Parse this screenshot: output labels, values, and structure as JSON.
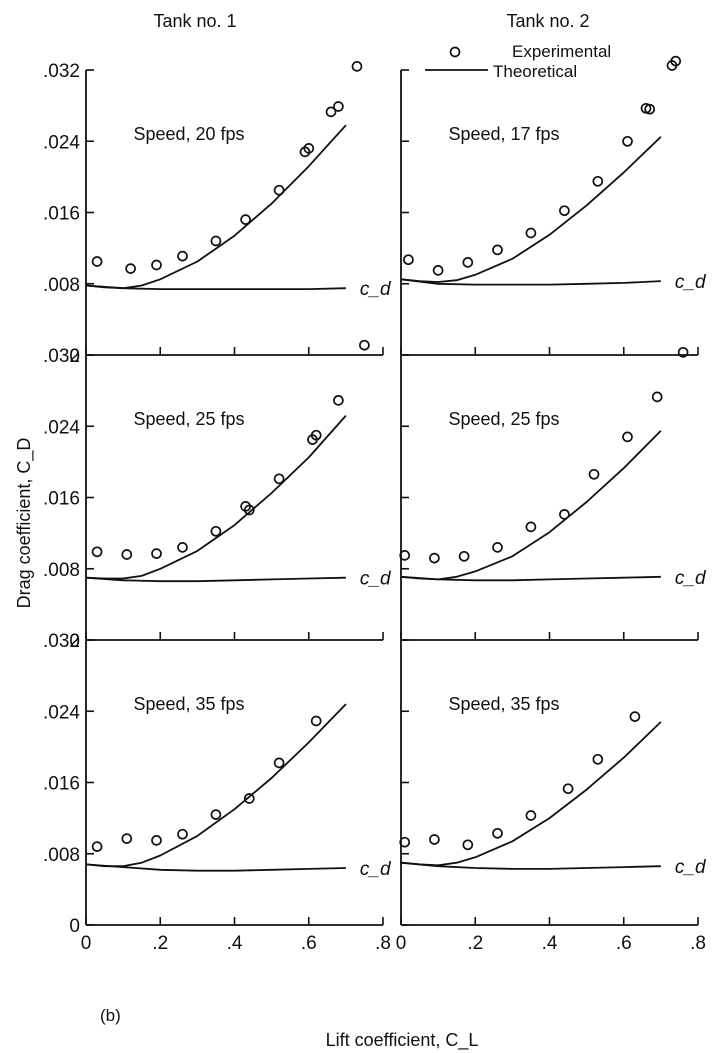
{
  "columns": [
    "Tank no. 1",
    "Tank no. 2"
  ],
  "xlabel": "Lift coefficient, C_L",
  "ylabel": "Drag coefficient, C_D",
  "legend": {
    "experimental": "Experimental",
    "theoretical": "Theoretical"
  },
  "panel_tag": "(b)",
  "curve_label": "c_d",
  "chart_data": [
    {
      "type": "scatter",
      "panel": "tank1-20fps",
      "title": "Speed, 20 fps",
      "column": "Tank no. 1",
      "xlim": [
        0,
        0.8
      ],
      "ylim": [
        0,
        0.032
      ],
      "xticks": [
        {
          "v": 0,
          "label": "0"
        },
        {
          "v": 0.2,
          "label": ".2"
        },
        {
          "v": 0.4,
          "label": ".4"
        },
        {
          "v": 0.6,
          "label": ".6"
        },
        {
          "v": 0.8,
          "label": ".8"
        }
      ],
      "yticks": [
        {
          "v": 0,
          "label": "0"
        },
        {
          "v": 0.008,
          "label": ".008"
        },
        {
          "v": 0.016,
          "label": ".016"
        },
        {
          "v": 0.024,
          "label": ".024"
        },
        {
          "v": 0.032,
          "label": ".032"
        }
      ],
      "series": [
        {
          "name": "Experimental",
          "kind": "points",
          "x": [
            0.03,
            0.12,
            0.19,
            0.26,
            0.35,
            0.43,
            0.52,
            0.59,
            0.6,
            0.66,
            0.68,
            0.73
          ],
          "y": [
            0.0105,
            0.0097,
            0.0101,
            0.0111,
            0.0128,
            0.0152,
            0.0185,
            0.0228,
            0.0232,
            0.0273,
            0.0279,
            0.0324
          ]
        },
        {
          "name": "Theoretical",
          "kind": "line",
          "x": [
            0,
            0.05,
            0.1,
            0.15,
            0.2,
            0.3,
            0.4,
            0.5,
            0.6,
            0.7
          ],
          "y": [
            0.0078,
            0.0076,
            0.0075,
            0.0078,
            0.0085,
            0.0105,
            0.0134,
            0.017,
            0.0212,
            0.0258
          ]
        },
        {
          "name": "c_d",
          "kind": "line",
          "x": [
            0,
            0.1,
            0.2,
            0.3,
            0.4,
            0.5,
            0.6,
            0.7
          ],
          "y": [
            0.0078,
            0.0075,
            0.0074,
            0.0074,
            0.0074,
            0.0074,
            0.0074,
            0.0075
          ]
        }
      ]
    },
    {
      "type": "scatter",
      "panel": "tank2-17fps",
      "title": "Speed, 17 fps",
      "column": "Tank no. 2",
      "xlim": [
        0,
        0.8
      ],
      "ylim": [
        0,
        0.032
      ],
      "xticks": [
        {
          "v": 0,
          "label": "0"
        },
        {
          "v": 0.2,
          "label": ".2"
        },
        {
          "v": 0.4,
          "label": ".4"
        },
        {
          "v": 0.6,
          "label": ".6"
        },
        {
          "v": 0.8,
          "label": ".8"
        }
      ],
      "yticks": [
        {
          "v": 0,
          "label": "0"
        },
        {
          "v": 0.008,
          "label": ".008"
        },
        {
          "v": 0.016,
          "label": ".016"
        },
        {
          "v": 0.024,
          "label": ".024"
        },
        {
          "v": 0.032,
          "label": ".032"
        }
      ],
      "series": [
        {
          "name": "Experimental",
          "kind": "points",
          "x": [
            0.02,
            0.1,
            0.18,
            0.26,
            0.35,
            0.44,
            0.53,
            0.61,
            0.66,
            0.67,
            0.73,
            0.74
          ],
          "y": [
            0.0107,
            0.0095,
            0.0104,
            0.0118,
            0.0137,
            0.0162,
            0.0195,
            0.024,
            0.0277,
            0.0276,
            0.0325,
            0.033
          ]
        },
        {
          "name": "Theoretical",
          "kind": "line",
          "x": [
            0,
            0.05,
            0.1,
            0.15,
            0.2,
            0.3,
            0.4,
            0.5,
            0.6,
            0.7
          ],
          "y": [
            0.0085,
            0.0083,
            0.0082,
            0.0084,
            0.009,
            0.0108,
            0.0135,
            0.0168,
            0.0205,
            0.0245
          ]
        },
        {
          "name": "c_d",
          "kind": "line",
          "x": [
            0,
            0.1,
            0.2,
            0.3,
            0.4,
            0.5,
            0.6,
            0.7
          ],
          "y": [
            0.0085,
            0.008,
            0.0079,
            0.0079,
            0.0079,
            0.008,
            0.0081,
            0.0083
          ]
        }
      ]
    },
    {
      "type": "scatter",
      "panel": "tank1-25fps",
      "title": "Speed, 25 fps",
      "column": "Tank no. 1",
      "xlim": [
        0,
        0.8
      ],
      "ylim": [
        0,
        0.032
      ],
      "xticks": [
        {
          "v": 0,
          "label": "0"
        },
        {
          "v": 0.2,
          "label": ".2"
        },
        {
          "v": 0.4,
          "label": ".4"
        },
        {
          "v": 0.6,
          "label": ".6"
        },
        {
          "v": 0.8,
          "label": ".8"
        }
      ],
      "yticks": [
        {
          "v": 0,
          "label": "0"
        },
        {
          "v": 0.008,
          "label": ".008"
        },
        {
          "v": 0.016,
          "label": ".016"
        },
        {
          "v": 0.024,
          "label": ".024"
        },
        {
          "v": 0.032,
          "label": ".032"
        }
      ],
      "series": [
        {
          "name": "Experimental",
          "kind": "points",
          "x": [
            0.03,
            0.11,
            0.19,
            0.26,
            0.35,
            0.43,
            0.44,
            0.52,
            0.61,
            0.62,
            0.68,
            0.75
          ],
          "y": [
            0.0099,
            0.0096,
            0.0097,
            0.0104,
            0.0122,
            0.015,
            0.0146,
            0.0181,
            0.0225,
            0.023,
            0.0269,
            0.0331
          ]
        },
        {
          "name": "Theoretical",
          "kind": "line",
          "x": [
            0,
            0.05,
            0.1,
            0.15,
            0.2,
            0.3,
            0.4,
            0.5,
            0.6,
            0.7
          ],
          "y": [
            0.007,
            0.0069,
            0.0069,
            0.0072,
            0.008,
            0.01,
            0.0129,
            0.0165,
            0.0205,
            0.0252
          ]
        },
        {
          "name": "c_d",
          "kind": "line",
          "x": [
            0,
            0.1,
            0.2,
            0.3,
            0.4,
            0.5,
            0.6,
            0.7
          ],
          "y": [
            0.007,
            0.0067,
            0.0066,
            0.0066,
            0.0067,
            0.0068,
            0.0069,
            0.007
          ]
        }
      ]
    },
    {
      "type": "scatter",
      "panel": "tank2-25fps",
      "title": "Speed, 25 fps",
      "column": "Tank no. 2",
      "xlim": [
        0,
        0.8
      ],
      "ylim": [
        0,
        0.032
      ],
      "xticks": [
        {
          "v": 0,
          "label": "0"
        },
        {
          "v": 0.2,
          "label": ".2"
        },
        {
          "v": 0.4,
          "label": ".4"
        },
        {
          "v": 0.6,
          "label": ".6"
        },
        {
          "v": 0.8,
          "label": ".8"
        }
      ],
      "yticks": [
        {
          "v": 0,
          "label": "0"
        },
        {
          "v": 0.008,
          "label": ".008"
        },
        {
          "v": 0.016,
          "label": ".016"
        },
        {
          "v": 0.024,
          "label": ".024"
        },
        {
          "v": 0.032,
          "label": ".032"
        }
      ],
      "series": [
        {
          "name": "Experimental",
          "kind": "points",
          "x": [
            0.01,
            0.09,
            0.17,
            0.26,
            0.35,
            0.44,
            0.52,
            0.61,
            0.69,
            0.76
          ],
          "y": [
            0.0095,
            0.0092,
            0.0094,
            0.0104,
            0.0127,
            0.0141,
            0.0186,
            0.0228,
            0.0273,
            0.0323
          ]
        },
        {
          "name": "Theoretical",
          "kind": "line",
          "x": [
            0,
            0.05,
            0.1,
            0.15,
            0.2,
            0.3,
            0.4,
            0.5,
            0.6,
            0.7
          ],
          "y": [
            0.0071,
            0.0069,
            0.0068,
            0.0071,
            0.0077,
            0.0094,
            0.0121,
            0.0155,
            0.0193,
            0.0235
          ]
        },
        {
          "name": "c_d",
          "kind": "line",
          "x": [
            0,
            0.1,
            0.2,
            0.3,
            0.4,
            0.5,
            0.6,
            0.7
          ],
          "y": [
            0.0071,
            0.0068,
            0.0067,
            0.0067,
            0.0068,
            0.0069,
            0.007,
            0.0071
          ]
        }
      ]
    },
    {
      "type": "scatter",
      "panel": "tank1-35fps",
      "title": "Speed, 35 fps",
      "column": "Tank no. 1",
      "xlim": [
        0,
        0.8
      ],
      "ylim": [
        0,
        0.032
      ],
      "xticks": [
        {
          "v": 0,
          "label": "0"
        },
        {
          "v": 0.2,
          "label": ".2"
        },
        {
          "v": 0.4,
          "label": ".4"
        },
        {
          "v": 0.6,
          "label": ".6"
        },
        {
          "v": 0.8,
          "label": ".8"
        }
      ],
      "yticks": [
        {
          "v": 0,
          "label": "0"
        },
        {
          "v": 0.008,
          "label": ".008"
        },
        {
          "v": 0.016,
          "label": ".016"
        },
        {
          "v": 0.024,
          "label": ".024"
        },
        {
          "v": 0.032,
          "label": ".032"
        }
      ],
      "series": [
        {
          "name": "Experimental",
          "kind": "points",
          "x": [
            0.03,
            0.11,
            0.19,
            0.26,
            0.35,
            0.44,
            0.52,
            0.62
          ],
          "y": [
            0.0088,
            0.0097,
            0.0095,
            0.0102,
            0.0124,
            0.0142,
            0.0182,
            0.0229
          ]
        },
        {
          "name": "Theoretical",
          "kind": "line",
          "x": [
            0,
            0.05,
            0.1,
            0.15,
            0.2,
            0.3,
            0.4,
            0.5,
            0.6,
            0.7
          ],
          "y": [
            0.0068,
            0.0066,
            0.0066,
            0.007,
            0.0078,
            0.01,
            0.013,
            0.0165,
            0.0205,
            0.0248
          ]
        },
        {
          "name": "c_d",
          "kind": "line",
          "x": [
            0,
            0.1,
            0.2,
            0.3,
            0.4,
            0.5,
            0.6,
            0.7
          ],
          "y": [
            0.0068,
            0.0065,
            0.0062,
            0.0061,
            0.0061,
            0.0062,
            0.0063,
            0.0064
          ]
        }
      ]
    },
    {
      "type": "scatter",
      "panel": "tank2-35fps",
      "title": "Speed, 35 fps",
      "column": "Tank no. 2",
      "xlim": [
        0,
        0.8
      ],
      "ylim": [
        0,
        0.032
      ],
      "xticks": [
        {
          "v": 0,
          "label": "0"
        },
        {
          "v": 0.2,
          "label": ".2"
        },
        {
          "v": 0.4,
          "label": ".4"
        },
        {
          "v": 0.6,
          "label": ".6"
        },
        {
          "v": 0.8,
          "label": ".8"
        }
      ],
      "yticks": [
        {
          "v": 0,
          "label": "0"
        },
        {
          "v": 0.008,
          "label": ".008"
        },
        {
          "v": 0.016,
          "label": ".016"
        },
        {
          "v": 0.024,
          "label": ".024"
        },
        {
          "v": 0.032,
          "label": ".032"
        }
      ],
      "series": [
        {
          "name": "Experimental",
          "kind": "points",
          "x": [
            0.01,
            0.09,
            0.18,
            0.26,
            0.35,
            0.45,
            0.53,
            0.63
          ],
          "y": [
            0.0093,
            0.0096,
            0.009,
            0.0103,
            0.0123,
            0.0153,
            0.0186,
            0.0234
          ]
        },
        {
          "name": "Theoretical",
          "kind": "line",
          "x": [
            0,
            0.05,
            0.1,
            0.15,
            0.2,
            0.3,
            0.4,
            0.5,
            0.6,
            0.7
          ],
          "y": [
            0.007,
            0.0068,
            0.0067,
            0.007,
            0.0076,
            0.0094,
            0.012,
            0.0152,
            0.0188,
            0.0228
          ]
        },
        {
          "name": "c_d",
          "kind": "line",
          "x": [
            0,
            0.1,
            0.2,
            0.3,
            0.4,
            0.5,
            0.6,
            0.7
          ],
          "y": [
            0.007,
            0.0066,
            0.0064,
            0.0063,
            0.0063,
            0.0064,
            0.0065,
            0.0066
          ]
        }
      ]
    }
  ]
}
